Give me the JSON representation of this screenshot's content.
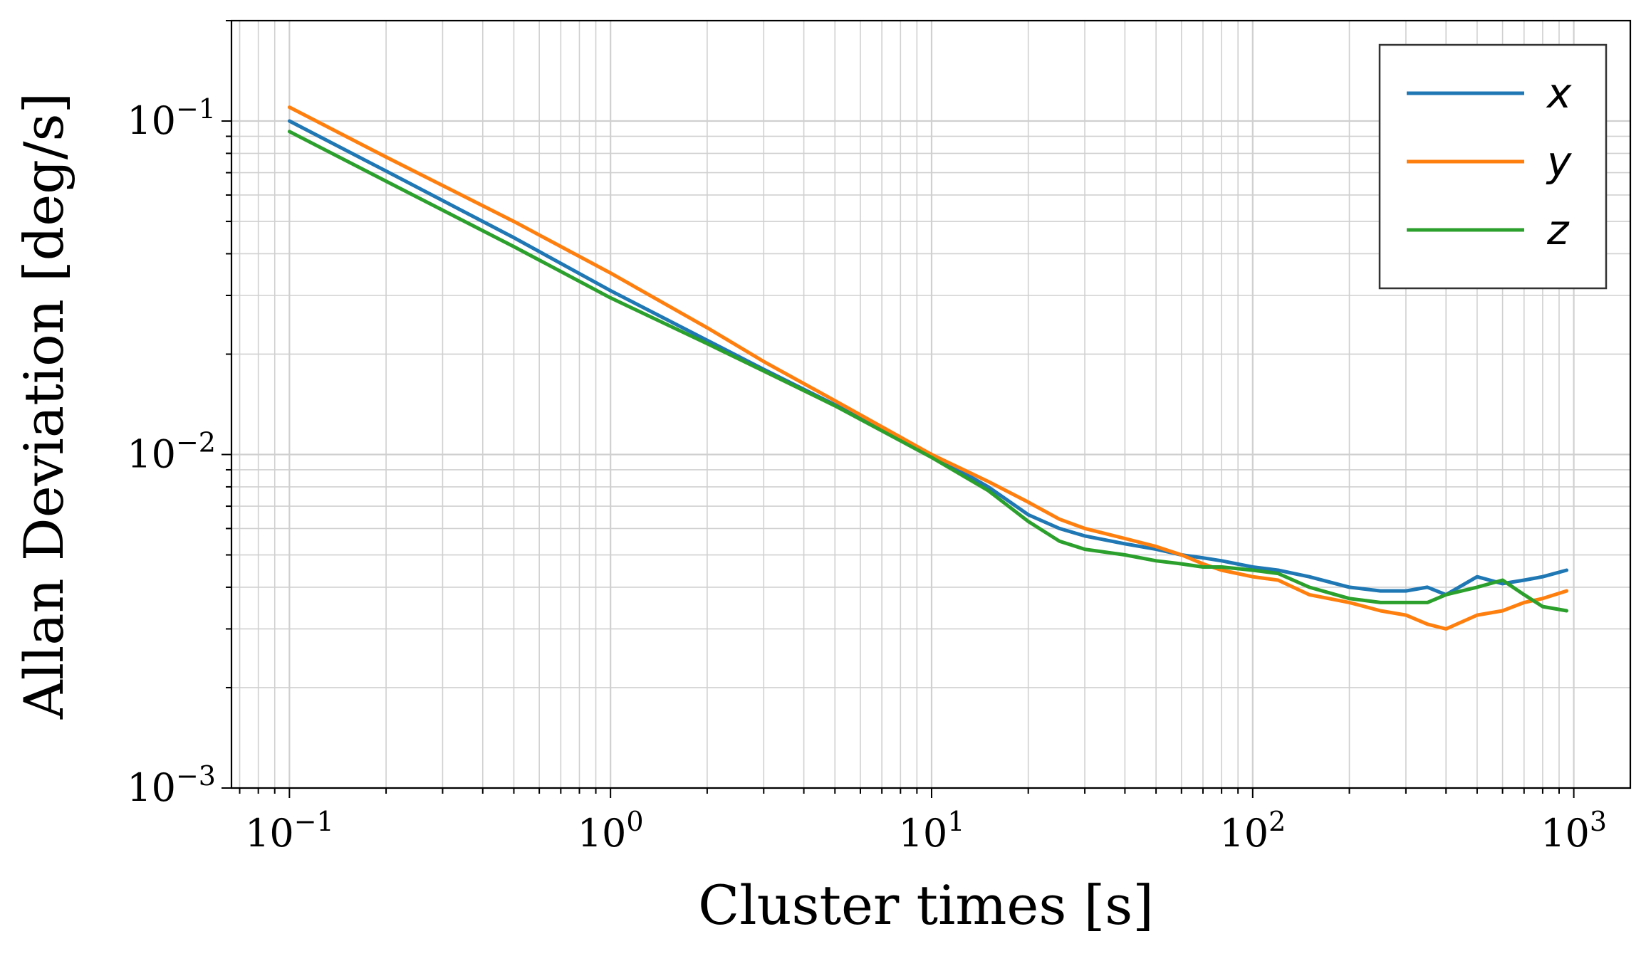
{
  "chart_data": {
    "type": "line",
    "title": "",
    "xlabel": "Cluster times [s]",
    "ylabel": "Allan Deviation [deg/s]",
    "xscale": "log",
    "yscale": "log",
    "xlim": [
      0.066,
      1500
    ],
    "ylim": [
      0.001,
      0.2
    ],
    "grid": "on (major and minor)",
    "legend": "top-right",
    "x_ticks": [
      {
        "base": "10",
        "exp": "−1",
        "value": 0.1
      },
      {
        "base": "10",
        "exp": "0",
        "value": 1
      },
      {
        "base": "10",
        "exp": "1",
        "value": 10
      },
      {
        "base": "10",
        "exp": "2",
        "value": 100
      },
      {
        "base": "10",
        "exp": "3",
        "value": 1000
      }
    ],
    "y_ticks": [
      {
        "base": "10",
        "exp": "−3",
        "value": 0.001
      },
      {
        "base": "10",
        "exp": "−2",
        "value": 0.01
      },
      {
        "base": "10",
        "exp": "−1",
        "value": 0.1
      }
    ],
    "x": [
      0.1,
      0.2,
      0.5,
      1,
      2,
      3,
      5,
      10,
      15,
      20,
      25,
      30,
      40,
      50,
      60,
      70,
      80,
      100,
      120,
      150,
      200,
      250,
      300,
      350,
      400,
      500,
      600,
      700,
      800,
      950
    ],
    "series": [
      {
        "name": "x",
        "color": "#1f77b4",
        "values": [
          0.1,
          0.0708,
          0.0447,
          0.031,
          0.022,
          0.018,
          0.0141,
          0.01,
          0.008,
          0.0066,
          0.006,
          0.0057,
          0.0054,
          0.0052,
          0.005,
          0.0049,
          0.0048,
          0.0046,
          0.0045,
          0.0043,
          0.004,
          0.0039,
          0.0039,
          0.004,
          0.0038,
          0.0043,
          0.0041,
          0.0042,
          0.0043,
          0.0045
        ]
      },
      {
        "name": "y",
        "color": "#ff7f0e",
        "values": [
          0.11,
          0.078,
          0.05,
          0.035,
          0.024,
          0.019,
          0.0145,
          0.01,
          0.0083,
          0.0072,
          0.0064,
          0.006,
          0.0056,
          0.0053,
          0.005,
          0.0047,
          0.0045,
          0.0043,
          0.0042,
          0.0038,
          0.0036,
          0.0034,
          0.0033,
          0.0031,
          0.003,
          0.0033,
          0.0034,
          0.0036,
          0.0037,
          0.0039
        ]
      },
      {
        "name": "z",
        "color": "#2ca02c",
        "values": [
          0.093,
          0.066,
          0.042,
          0.0295,
          0.0215,
          0.0178,
          0.014,
          0.0098,
          0.0078,
          0.0063,
          0.0055,
          0.0052,
          0.005,
          0.0048,
          0.0047,
          0.0046,
          0.0046,
          0.0045,
          0.0044,
          0.004,
          0.0037,
          0.0036,
          0.0036,
          0.0036,
          0.0038,
          0.004,
          0.0042,
          0.0038,
          0.0035,
          0.0034
        ]
      }
    ]
  }
}
